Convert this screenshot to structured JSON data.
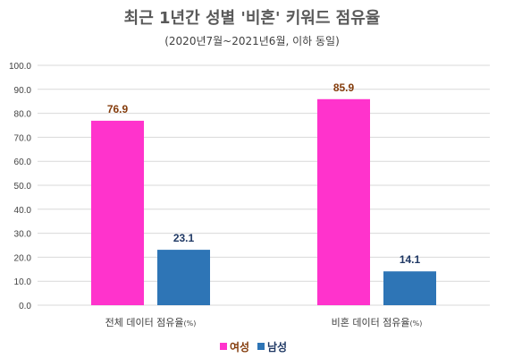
{
  "chart_data": {
    "type": "bar",
    "title": "최근 1년간 성별 '비혼' 키워드 점유율",
    "subtitle": "(2020년7월~2021년6월, 이하 동일)",
    "categories": [
      "전체 데이터 점유율",
      "비혼 데이터 점유율"
    ],
    "category_suffix": "(%)",
    "series": [
      {
        "name": "여성",
        "values": [
          76.9,
          85.9
        ],
        "color": "#ff33cc",
        "label_color": "#843c0c"
      },
      {
        "name": "남성",
        "values": [
          23.1,
          14.1
        ],
        "color": "#2e75b6",
        "label_color": "#1f3864"
      }
    ],
    "value_labels": [
      [
        "76.9",
        "85.9"
      ],
      [
        "23.1",
        "14.1"
      ]
    ],
    "ylim": [
      0,
      100
    ],
    "yticks": [
      "0.0",
      "10.0",
      "20.0",
      "30.0",
      "40.0",
      "50.0",
      "60.0",
      "70.0",
      "80.0",
      "90.0",
      "100.0"
    ],
    "grid": true,
    "legend_position": "bottom"
  }
}
